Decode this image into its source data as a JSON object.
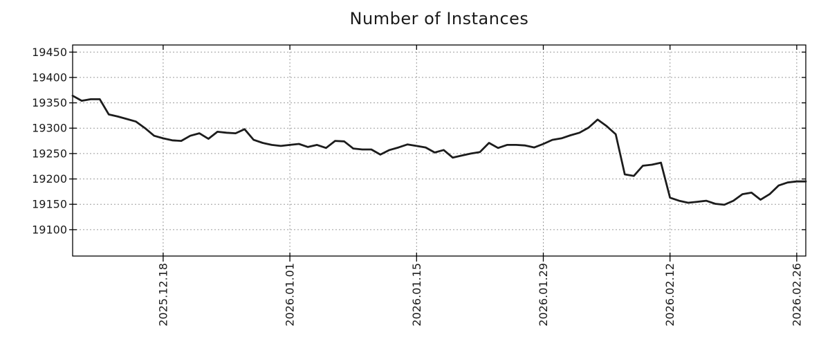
{
  "figure": {
    "title": "Number of Instances"
  },
  "chart_data": {
    "type": "line",
    "title": "Number of Instances",
    "xlabel": "",
    "ylabel": "",
    "grid": true,
    "legend": "none",
    "line_color": "#1c1c1c",
    "grid_color": "#9a9a9a",
    "axis_color": "#000000",
    "text_color": "#1a1a1a",
    "ylim": [
      19048,
      19464
    ],
    "xlim": [
      0,
      81
    ],
    "y_ticks": [
      19100,
      19150,
      19200,
      19250,
      19300,
      19350,
      19400,
      19450
    ],
    "x_ticks": [
      {
        "pos": 10,
        "label": "2025.12.18"
      },
      {
        "pos": 24,
        "label": "2026.01.01"
      },
      {
        "pos": 38,
        "label": "2026.01.15"
      },
      {
        "pos": 52,
        "label": "2026.01.29"
      },
      {
        "pos": 66,
        "label": "2026.02.12"
      },
      {
        "pos": 80,
        "label": "2026.02.26"
      }
    ],
    "series": [
      {
        "name": "instances",
        "values": [
          19364,
          19354,
          19357,
          19357,
          19327,
          19323,
          19318,
          19313,
          19300,
          19285,
          19280,
          19276,
          19275,
          19285,
          19290,
          19279,
          19293,
          19291,
          19290,
          19298,
          19277,
          19271,
          19267,
          19265,
          19267,
          19269,
          19263,
          19267,
          19261,
          19275,
          19274,
          19260,
          19258,
          19258,
          19248,
          19257,
          19262,
          19268,
          19265,
          19262,
          19252,
          19257,
          19242,
          19246,
          19250,
          19253,
          19271,
          19261,
          19267,
          19267,
          19266,
          19262,
          19269,
          19277,
          19280,
          19286,
          19291,
          19301,
          19317,
          19304,
          19288,
          19209,
          19206,
          19226,
          19228,
          19232,
          19163,
          19157,
          19153,
          19155,
          19157,
          19151,
          19149,
          19157,
          19170,
          19173,
          19159,
          19170,
          19187,
          19193,
          19195,
          19195
        ]
      }
    ]
  }
}
